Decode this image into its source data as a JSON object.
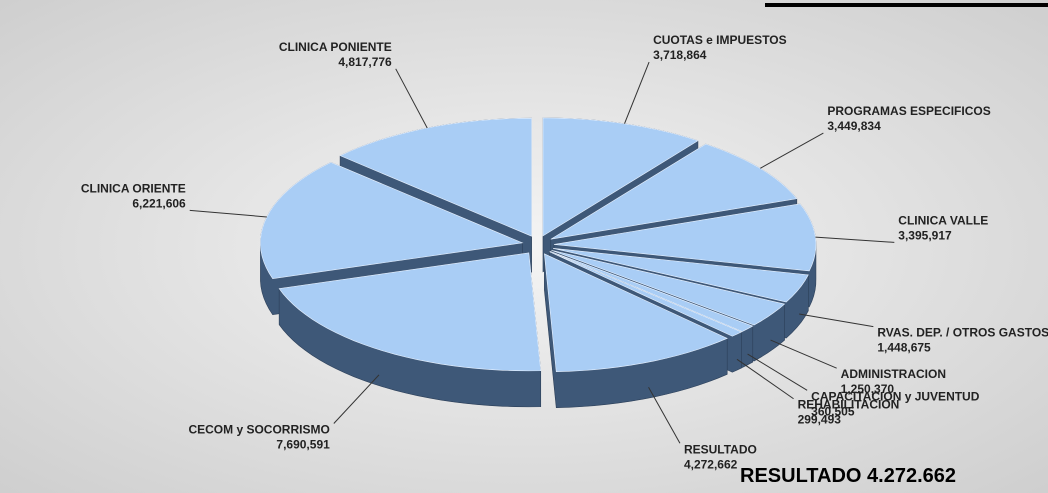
{
  "chart_data": {
    "type": "pie",
    "categories": [
      "CUOTAS e IMPUESTOS",
      "PROGRAMAS ESPECIFICOS",
      "CLINICA VALLE",
      "RVAS. DEP. / OTROS GASTOS",
      "ADMINISTRACION",
      "CAPACITACION y JUVENTUD",
      "REHABILITACION",
      "RESULTADO",
      "CECOM y SOCORRISMO",
      "CLINICA ORIENTE",
      "CLINICA PONIENTE"
    ],
    "values": [
      3718864,
      3449834,
      3395917,
      1448675,
      1250370,
      360505,
      299493,
      4272662,
      7690591,
      6221606,
      4817776
    ],
    "value_labels": [
      "3,718,864",
      "3,449,834",
      "3,395,917",
      "1,448,675",
      "1,250,370",
      "360,505",
      "299,493",
      "4,272,662",
      "7,690,591",
      "6,221,606",
      "4,817,776"
    ],
    "color": "#a9cdf5",
    "side_color": "#3e5878",
    "annotation": "RESULTADO 4.272.662"
  }
}
